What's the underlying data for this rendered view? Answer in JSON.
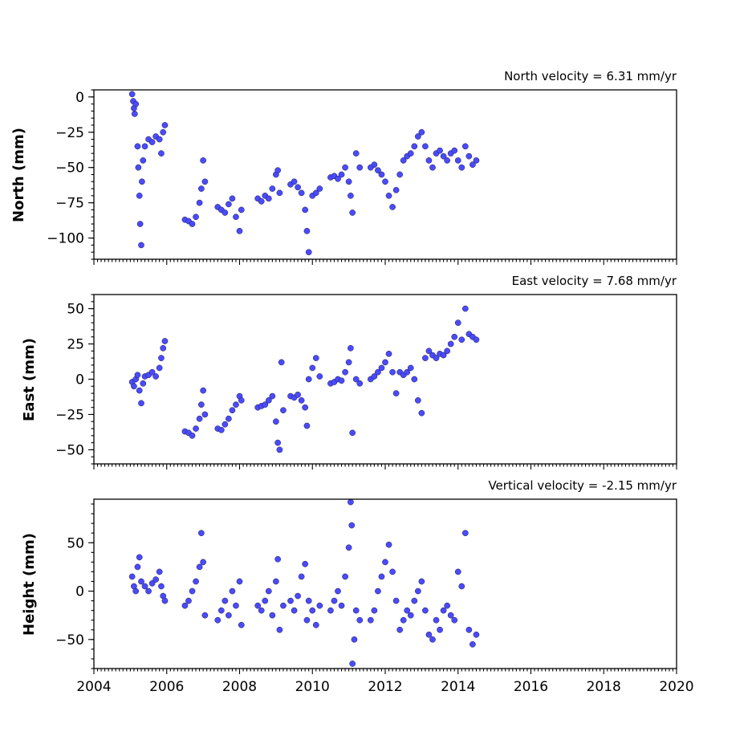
{
  "chart_data": [
    {
      "type": "scatter",
      "title": "North velocity = 6.31 mm/yr",
      "ylabel": "North (mm)",
      "xlim": [
        2004,
        2020
      ],
      "ylim": [
        -115,
        5
      ],
      "yticks": [
        0,
        -25,
        -50,
        -75,
        -100
      ],
      "show_xtick_labels": false,
      "color": "#4a4aff",
      "points": [
        [
          2005.05,
          2
        ],
        [
          2005.08,
          -3
        ],
        [
          2005.1,
          -8
        ],
        [
          2005.12,
          -12
        ],
        [
          2005.15,
          -5
        ],
        [
          2005.2,
          -35
        ],
        [
          2005.22,
          -50
        ],
        [
          2005.25,
          -70
        ],
        [
          2005.27,
          -90
        ],
        [
          2005.3,
          -105
        ],
        [
          2005.32,
          -60
        ],
        [
          2005.35,
          -45
        ],
        [
          2005.4,
          -35
        ],
        [
          2005.5,
          -30
        ],
        [
          2005.6,
          -32
        ],
        [
          2005.7,
          -28
        ],
        [
          2005.8,
          -30
        ],
        [
          2005.85,
          -40
        ],
        [
          2005.9,
          -25
        ],
        [
          2005.95,
          -20
        ],
        [
          2006.5,
          -87
        ],
        [
          2006.6,
          -88
        ],
        [
          2006.7,
          -90
        ],
        [
          2006.8,
          -85
        ],
        [
          2006.9,
          -75
        ],
        [
          2006.95,
          -65
        ],
        [
          2007.0,
          -45
        ],
        [
          2007.05,
          -60
        ],
        [
          2007.4,
          -78
        ],
        [
          2007.5,
          -80
        ],
        [
          2007.6,
          -82
        ],
        [
          2007.7,
          -76
        ],
        [
          2007.8,
          -72
        ],
        [
          2007.9,
          -85
        ],
        [
          2008.0,
          -95
        ],
        [
          2008.05,
          -80
        ],
        [
          2008.5,
          -72
        ],
        [
          2008.6,
          -74
        ],
        [
          2008.7,
          -70
        ],
        [
          2008.8,
          -72
        ],
        [
          2008.9,
          -65
        ],
        [
          2009.0,
          -55
        ],
        [
          2009.05,
          -52
        ],
        [
          2009.1,
          -68
        ],
        [
          2009.4,
          -62
        ],
        [
          2009.5,
          -60
        ],
        [
          2009.6,
          -64
        ],
        [
          2009.7,
          -68
        ],
        [
          2009.8,
          -80
        ],
        [
          2009.85,
          -95
        ],
        [
          2009.9,
          -110
        ],
        [
          2010.0,
          -70
        ],
        [
          2010.1,
          -68
        ],
        [
          2010.2,
          -65
        ],
        [
          2010.5,
          -57
        ],
        [
          2010.6,
          -56
        ],
        [
          2010.7,
          -58
        ],
        [
          2010.8,
          -55
        ],
        [
          2010.9,
          -50
        ],
        [
          2011.0,
          -60
        ],
        [
          2011.05,
          -70
        ],
        [
          2011.1,
          -82
        ],
        [
          2011.2,
          -40
        ],
        [
          2011.3,
          -50
        ],
        [
          2011.6,
          -50
        ],
        [
          2011.7,
          -48
        ],
        [
          2011.8,
          -52
        ],
        [
          2011.9,
          -55
        ],
        [
          2012.0,
          -60
        ],
        [
          2012.1,
          -70
        ],
        [
          2012.2,
          -78
        ],
        [
          2012.3,
          -66
        ],
        [
          2012.4,
          -55
        ],
        [
          2012.5,
          -45
        ],
        [
          2012.6,
          -42
        ],
        [
          2012.7,
          -40
        ],
        [
          2012.8,
          -35
        ],
        [
          2012.9,
          -28
        ],
        [
          2013.0,
          -25
        ],
        [
          2013.1,
          -35
        ],
        [
          2013.2,
          -45
        ],
        [
          2013.3,
          -50
        ],
        [
          2013.4,
          -40
        ],
        [
          2013.5,
          -38
        ],
        [
          2013.6,
          -42
        ],
        [
          2013.7,
          -45
        ],
        [
          2013.8,
          -40
        ],
        [
          2013.9,
          -38
        ],
        [
          2014.0,
          -45
        ],
        [
          2014.1,
          -50
        ],
        [
          2014.2,
          -35
        ],
        [
          2014.3,
          -42
        ],
        [
          2014.4,
          -48
        ],
        [
          2014.5,
          -45
        ]
      ]
    },
    {
      "type": "scatter",
      "title": "East velocity = 7.68 mm/yr",
      "ylabel": "East (mm)",
      "xlim": [
        2004,
        2020
      ],
      "ylim": [
        -60,
        60
      ],
      "yticks": [
        50,
        25,
        0,
        -25,
        -50
      ],
      "show_xtick_labels": false,
      "color": "#4a4aff",
      "points": [
        [
          2005.05,
          -2
        ],
        [
          2005.1,
          -5
        ],
        [
          2005.15,
          0
        ],
        [
          2005.2,
          3
        ],
        [
          2005.25,
          -8
        ],
        [
          2005.3,
          -17
        ],
        [
          2005.35,
          -3
        ],
        [
          2005.4,
          2
        ],
        [
          2005.5,
          3
        ],
        [
          2005.6,
          5
        ],
        [
          2005.7,
          2
        ],
        [
          2005.8,
          8
        ],
        [
          2005.85,
          15
        ],
        [
          2005.9,
          22
        ],
        [
          2005.95,
          27
        ],
        [
          2006.5,
          -37
        ],
        [
          2006.6,
          -38
        ],
        [
          2006.7,
          -40
        ],
        [
          2006.8,
          -35
        ],
        [
          2006.9,
          -28
        ],
        [
          2006.95,
          -18
        ],
        [
          2007.0,
          -8
        ],
        [
          2007.05,
          -25
        ],
        [
          2007.4,
          -35
        ],
        [
          2007.5,
          -36
        ],
        [
          2007.6,
          -32
        ],
        [
          2007.7,
          -28
        ],
        [
          2007.8,
          -22
        ],
        [
          2007.9,
          -18
        ],
        [
          2008.0,
          -12
        ],
        [
          2008.05,
          -15
        ],
        [
          2008.5,
          -20
        ],
        [
          2008.6,
          -19
        ],
        [
          2008.7,
          -18
        ],
        [
          2008.8,
          -15
        ],
        [
          2008.9,
          -12
        ],
        [
          2009.0,
          -30
        ],
        [
          2009.05,
          -45
        ],
        [
          2009.1,
          -50
        ],
        [
          2009.15,
          12
        ],
        [
          2009.2,
          -22
        ],
        [
          2009.4,
          -12
        ],
        [
          2009.5,
          -13
        ],
        [
          2009.6,
          -11
        ],
        [
          2009.7,
          -15
        ],
        [
          2009.8,
          -20
        ],
        [
          2009.85,
          -33
        ],
        [
          2009.9,
          0
        ],
        [
          2010.0,
          8
        ],
        [
          2010.1,
          15
        ],
        [
          2010.2,
          2
        ],
        [
          2010.5,
          -3
        ],
        [
          2010.6,
          -2
        ],
        [
          2010.7,
          0
        ],
        [
          2010.8,
          -1
        ],
        [
          2010.9,
          5
        ],
        [
          2011.0,
          12
        ],
        [
          2011.05,
          22
        ],
        [
          2011.1,
          -38
        ],
        [
          2011.2,
          0
        ],
        [
          2011.3,
          -3
        ],
        [
          2011.6,
          0
        ],
        [
          2011.7,
          2
        ],
        [
          2011.8,
          5
        ],
        [
          2011.9,
          8
        ],
        [
          2012.0,
          12
        ],
        [
          2012.1,
          18
        ],
        [
          2012.2,
          5
        ],
        [
          2012.3,
          -10
        ],
        [
          2012.4,
          5
        ],
        [
          2012.5,
          3
        ],
        [
          2012.6,
          5
        ],
        [
          2012.7,
          8
        ],
        [
          2012.8,
          0
        ],
        [
          2012.9,
          -15
        ],
        [
          2013.0,
          -24
        ],
        [
          2013.1,
          15
        ],
        [
          2013.2,
          20
        ],
        [
          2013.3,
          17
        ],
        [
          2013.4,
          15
        ],
        [
          2013.5,
          18
        ],
        [
          2013.6,
          17
        ],
        [
          2013.7,
          20
        ],
        [
          2013.8,
          25
        ],
        [
          2013.9,
          30
        ],
        [
          2014.0,
          40
        ],
        [
          2014.1,
          28
        ],
        [
          2014.2,
          50
        ],
        [
          2014.3,
          32
        ],
        [
          2014.4,
          30
        ],
        [
          2014.5,
          28
        ]
      ]
    },
    {
      "type": "scatter",
      "title": "Vertical velocity = -2.15 mm/yr",
      "ylabel": "Height (mm)",
      "xlim": [
        2004,
        2020
      ],
      "ylim": [
        -80,
        95
      ],
      "yticks": [
        50,
        0,
        -50
      ],
      "xticks": [
        2004,
        2006,
        2008,
        2010,
        2012,
        2014,
        2016,
        2018,
        2020
      ],
      "show_xtick_labels": true,
      "color": "#4a4aff",
      "points": [
        [
          2005.05,
          15
        ],
        [
          2005.1,
          5
        ],
        [
          2005.15,
          0
        ],
        [
          2005.2,
          25
        ],
        [
          2005.25,
          35
        ],
        [
          2005.3,
          10
        ],
        [
          2005.4,
          5
        ],
        [
          2005.5,
          0
        ],
        [
          2005.6,
          8
        ],
        [
          2005.7,
          12
        ],
        [
          2005.8,
          20
        ],
        [
          2005.85,
          5
        ],
        [
          2005.9,
          -5
        ],
        [
          2005.95,
          -10
        ],
        [
          2006.5,
          -15
        ],
        [
          2006.6,
          -10
        ],
        [
          2006.7,
          0
        ],
        [
          2006.8,
          10
        ],
        [
          2006.9,
          25
        ],
        [
          2006.95,
          60
        ],
        [
          2007.0,
          30
        ],
        [
          2007.05,
          -25
        ],
        [
          2007.4,
          -30
        ],
        [
          2007.5,
          -20
        ],
        [
          2007.6,
          -10
        ],
        [
          2007.7,
          -25
        ],
        [
          2007.8,
          0
        ],
        [
          2007.9,
          -15
        ],
        [
          2008.0,
          10
        ],
        [
          2008.05,
          -35
        ],
        [
          2008.5,
          -15
        ],
        [
          2008.6,
          -20
        ],
        [
          2008.7,
          -10
        ],
        [
          2008.8,
          0
        ],
        [
          2008.9,
          -25
        ],
        [
          2009.0,
          10
        ],
        [
          2009.05,
          33
        ],
        [
          2009.1,
          -40
        ],
        [
          2009.2,
          -15
        ],
        [
          2009.4,
          -10
        ],
        [
          2009.5,
          -20
        ],
        [
          2009.6,
          -5
        ],
        [
          2009.7,
          15
        ],
        [
          2009.8,
          28
        ],
        [
          2009.85,
          -30
        ],
        [
          2009.9,
          -10
        ],
        [
          2010.0,
          -20
        ],
        [
          2010.1,
          -35
        ],
        [
          2010.2,
          -15
        ],
        [
          2010.5,
          -20
        ],
        [
          2010.6,
          -10
        ],
        [
          2010.7,
          0
        ],
        [
          2010.8,
          -15
        ],
        [
          2010.9,
          15
        ],
        [
          2011.0,
          45
        ],
        [
          2011.05,
          92
        ],
        [
          2011.08,
          68
        ],
        [
          2011.1,
          -75
        ],
        [
          2011.15,
          -50
        ],
        [
          2011.2,
          -20
        ],
        [
          2011.3,
          -30
        ],
        [
          2011.6,
          -30
        ],
        [
          2011.7,
          -20
        ],
        [
          2011.8,
          0
        ],
        [
          2011.9,
          15
        ],
        [
          2012.0,
          30
        ],
        [
          2012.1,
          48
        ],
        [
          2012.2,
          20
        ],
        [
          2012.3,
          -10
        ],
        [
          2012.4,
          -40
        ],
        [
          2012.5,
          -30
        ],
        [
          2012.6,
          -20
        ],
        [
          2012.7,
          -25
        ],
        [
          2012.8,
          -10
        ],
        [
          2012.9,
          0
        ],
        [
          2013.0,
          10
        ],
        [
          2013.1,
          -20
        ],
        [
          2013.2,
          -45
        ],
        [
          2013.3,
          -50
        ],
        [
          2013.4,
          -30
        ],
        [
          2013.5,
          -40
        ],
        [
          2013.6,
          -20
        ],
        [
          2013.7,
          -15
        ],
        [
          2013.8,
          -25
        ],
        [
          2013.9,
          -30
        ],
        [
          2014.0,
          20
        ],
        [
          2014.1,
          5
        ],
        [
          2014.2,
          60
        ],
        [
          2014.3,
          -40
        ],
        [
          2014.4,
          -55
        ],
        [
          2014.5,
          -45
        ]
      ]
    }
  ]
}
